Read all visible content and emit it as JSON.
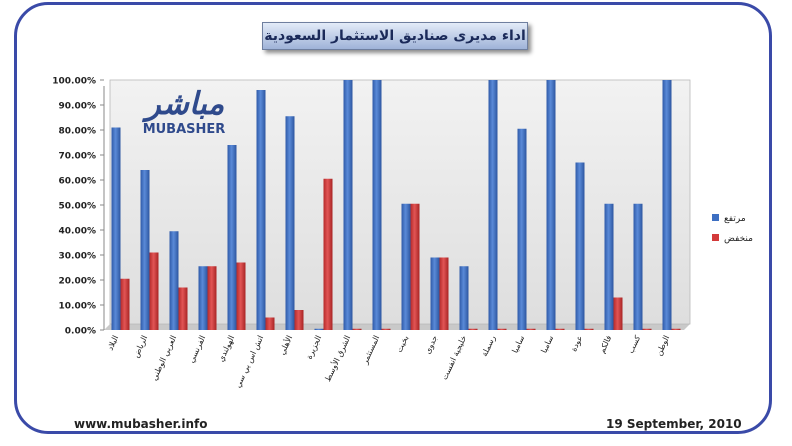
{
  "title": "اداء مديرى صناديق الاستثمار السعودية",
  "logo": {
    "arabic": "مباشر",
    "latin": "MUBASHER"
  },
  "footer": {
    "url": "www.mubasher.info",
    "date": "19 September, 2010"
  },
  "colors": {
    "rise": "#3d6fc2",
    "fall": "#d33a3a",
    "plot_bg": "#eaeaea",
    "frame": "#3a4aa8"
  },
  "chart_data": {
    "type": "bar",
    "title": "",
    "xlabel": "",
    "ylabel": "",
    "ylim": [
      0,
      100
    ],
    "ytick_step": 10,
    "ytick_format": "percent_2dp",
    "legend_position": "right",
    "grid": false,
    "categories": [
      "البلاد",
      "الرياض",
      "العربي الوطني",
      "الفرنسي",
      "الهولندي",
      "اتش اس بي سي",
      "الأهلي",
      "الجزيرة",
      "الشرق الأوسط",
      "المستثمر",
      "بخيت",
      "جدوى",
      "خليجية انفست",
      "رسملة",
      "ساميا",
      "سامبا",
      "عودة",
      "فالكم",
      "كسب",
      "الوطن"
    ],
    "series": [
      {
        "name": "مرتفع",
        "color": "#3d6fc2",
        "values": [
          81,
          64,
          39.5,
          25.5,
          74,
          96,
          85.5,
          0.5,
          100,
          100,
          50.5,
          29,
          25.5,
          100,
          80.5,
          100,
          67,
          50.5,
          50.5,
          100
        ]
      },
      {
        "name": "منخفض",
        "color": "#d33a3a",
        "values": [
          20.5,
          31,
          17,
          25.5,
          27,
          5,
          8,
          60.5,
          0.5,
          0.5,
          50.5,
          29,
          0.5,
          0.5,
          0.5,
          0.5,
          0.5,
          13,
          0.5,
          0.5
        ]
      }
    ]
  }
}
